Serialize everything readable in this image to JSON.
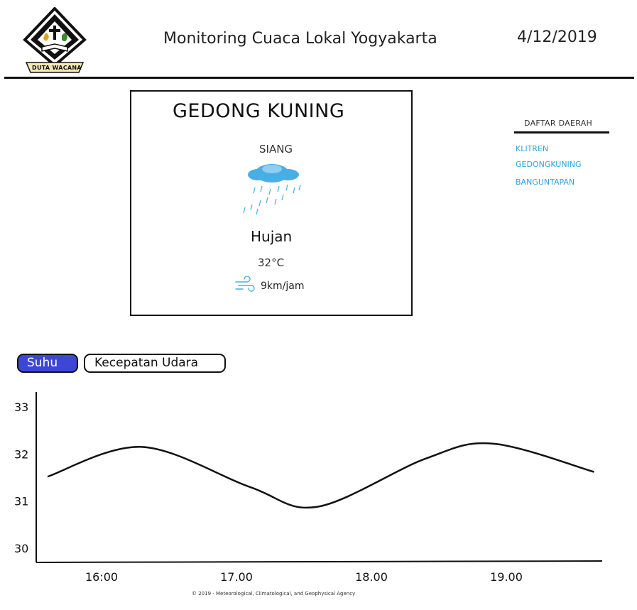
{
  "header": {
    "logo_text": "DUTA WACANA",
    "title": "Monitoring Cuaca Lokal Yogyakarta",
    "date": "4/12/2019"
  },
  "weather_card": {
    "location": "GEDONG KUNING",
    "period": "SIANG",
    "weather_icon": "rain-cloud-icon",
    "condition": "Hujan",
    "temperature": "32°C",
    "wind_icon": "wind-icon",
    "wind_speed": "9km/jam"
  },
  "region_panel": {
    "title": "DAFTAR DAERAH",
    "items": [
      "KLITREN",
      "GEDONGKUNING",
      "BANGUNTAPAN"
    ]
  },
  "tabs": {
    "temperature": "Suhu",
    "wind_speed": "Kecepatan Udara",
    "active": "Suhu"
  },
  "colors": {
    "active_tab": "#3d47d6",
    "link": "#2aa3e6",
    "cloud": "#4aaee6"
  },
  "chart_data": {
    "type": "line",
    "title": "",
    "xlabel": "",
    "ylabel": "",
    "categories": [
      "16:00",
      "17.00",
      "18.00",
      "19.00"
    ],
    "y_ticks": [
      30,
      31,
      32,
      33
    ],
    "ylim": [
      29.7,
      33.3
    ],
    "x": [
      15.6,
      16.3,
      17.1,
      17.6,
      18.4,
      18.9,
      19.65
    ],
    "series": [
      {
        "name": "Suhu",
        "values": [
          31.52,
          32.15,
          31.3,
          30.88,
          31.9,
          32.22,
          31.62
        ]
      }
    ]
  },
  "footer": {
    "text": "© 2019 - Meteorological, Climatological, and Geophysical Agency"
  }
}
